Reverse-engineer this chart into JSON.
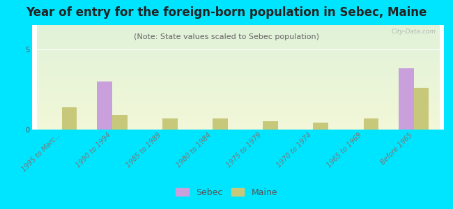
{
  "title": "Year of entry for the foreign-born population in Sebec, Maine",
  "subtitle": "(Note: State values scaled to Sebec population)",
  "categories": [
    "1995 to Marc...",
    "1990 to 1994",
    "1985 to 1989",
    "1980 to 1984",
    "1975 to 1979",
    "1970 to 1974",
    "1965 to 1969",
    "Before 1965"
  ],
  "sebec_values": [
    0,
    3.0,
    0,
    0,
    0,
    0,
    0,
    3.8
  ],
  "maine_values": [
    1.4,
    0.9,
    0.7,
    0.7,
    0.5,
    0.45,
    0.7,
    2.6
  ],
  "ylim": [
    0,
    6.5
  ],
  "yticks": [
    0,
    5
  ],
  "sebec_color": "#c9a0dc",
  "maine_color": "#c8c87a",
  "background_color": "#00e5ff",
  "bar_width": 0.3,
  "watermark": "City-Data.com",
  "title_fontsize": 12,
  "subtitle_fontsize": 8,
  "tick_fontsize": 7
}
